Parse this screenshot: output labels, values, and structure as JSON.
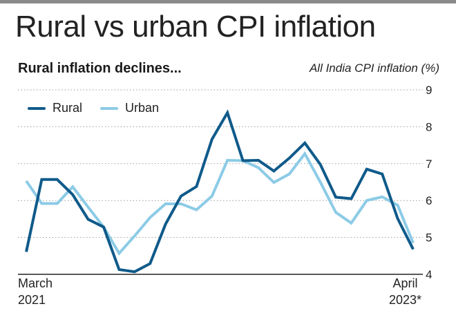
{
  "header": {
    "title": "Rural vs urban CPI inflation",
    "subtitle": "Rural inflation declines...",
    "unit_label": "All India CPI inflation (%)"
  },
  "x_axis": {
    "start_month": "March",
    "start_year": "2021",
    "end_month": "April",
    "end_year": "2023*"
  },
  "colors": {
    "rural": "#0f5a8a",
    "urban": "#8ccbe6",
    "grid": "#9a9a9a"
  },
  "chart_data": {
    "type": "line",
    "title": "Rural inflation declines...",
    "ylabel": "All India CPI inflation (%)",
    "xlabel": "",
    "ylim": [
      4,
      9
    ],
    "y_ticks": [
      "4",
      "5",
      "6",
      "7",
      "8",
      "9"
    ],
    "grid": true,
    "legend_position": "top-left",
    "x": [
      "Mar 2021",
      "Apr 2021",
      "May 2021",
      "Jun 2021",
      "Jul 2021",
      "Aug 2021",
      "Sep 2021",
      "Oct 2021",
      "Nov 2021",
      "Dec 2021",
      "Jan 2022",
      "Feb 2022",
      "Mar 2022",
      "Apr 2022",
      "May 2022",
      "Jun 2022",
      "Jul 2022",
      "Aug 2022",
      "Sep 2022",
      "Oct 2022",
      "Nov 2022",
      "Dec 2022",
      "Jan 2023",
      "Feb 2023",
      "Mar 2023",
      "Apr 2023*"
    ],
    "series": [
      {
        "name": "Rural",
        "values": [
          4.61,
          6.57,
          6.57,
          6.16,
          5.49,
          5.28,
          4.13,
          4.07,
          4.29,
          5.36,
          6.12,
          6.38,
          7.66,
          8.38,
          7.08,
          7.09,
          6.8,
          7.15,
          7.56,
          6.98,
          6.09,
          6.05,
          6.85,
          6.72,
          5.51,
          4.68
        ]
      },
      {
        "name": "Urban",
        "values": [
          6.53,
          5.92,
          5.92,
          6.37,
          5.82,
          5.28,
          4.57,
          5.04,
          5.54,
          5.91,
          5.91,
          5.75,
          6.12,
          7.09,
          7.08,
          6.89,
          6.49,
          6.72,
          7.27,
          6.5,
          5.68,
          5.39,
          6.0,
          6.1,
          5.87,
          4.85
        ]
      }
    ]
  }
}
